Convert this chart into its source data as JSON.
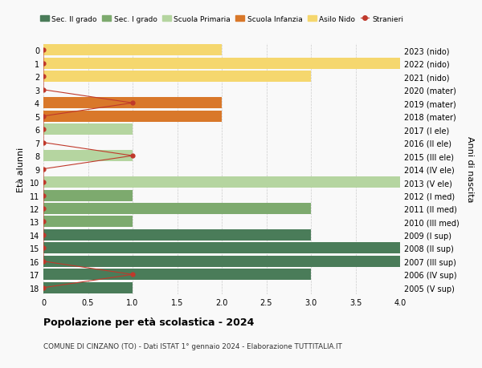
{
  "ages": [
    18,
    17,
    16,
    15,
    14,
    13,
    12,
    11,
    10,
    9,
    8,
    7,
    6,
    5,
    4,
    3,
    2,
    1,
    0
  ],
  "right_labels": [
    "2005 (V sup)",
    "2006 (IV sup)",
    "2007 (III sup)",
    "2008 (II sup)",
    "2009 (I sup)",
    "2010 (III med)",
    "2011 (II med)",
    "2012 (I med)",
    "2013 (V ele)",
    "2014 (IV ele)",
    "2015 (III ele)",
    "2016 (II ele)",
    "2017 (I ele)",
    "2018 (mater)",
    "2019 (mater)",
    "2020 (mater)",
    "2021 (nido)",
    "2022 (nido)",
    "2023 (nido)"
  ],
  "bar_values": [
    1,
    3,
    4,
    4,
    3,
    1,
    3,
    1,
    4,
    0,
    1,
    0,
    1,
    2,
    2,
    0,
    3,
    4,
    2
  ],
  "bar_colors": [
    "#4a7c59",
    "#4a7c59",
    "#4a7c59",
    "#4a7c59",
    "#4a7c59",
    "#7daa6e",
    "#7daa6e",
    "#7daa6e",
    "#b5d5a0",
    "#b5d5a0",
    "#b5d5a0",
    "#b5d5a0",
    "#b5d5a0",
    "#d9782a",
    "#d9782a",
    "#d9782a",
    "#f5d76e",
    "#f5d76e",
    "#f5d76e"
  ],
  "stranieri_values": [
    0,
    1,
    0,
    0,
    0,
    0,
    0,
    0,
    0,
    0,
    1,
    0,
    0,
    0,
    1,
    0,
    0,
    0,
    0
  ],
  "stranieri_color": "#c0392b",
  "legend_labels": [
    "Sec. II grado",
    "Sec. I grado",
    "Scuola Primaria",
    "Scuola Infanzia",
    "Asilo Nido",
    "Stranieri"
  ],
  "legend_colors": [
    "#4a7c59",
    "#7daa6e",
    "#b5d5a0",
    "#d9782a",
    "#f5d76e",
    "#c0392b"
  ],
  "title": "Popolazione per età scolastica - 2024",
  "subtitle": "COMUNE DI CINZANO (TO) - Dati ISTAT 1° gennaio 2024 - Elaborazione TUTTITALIA.IT",
  "ylabel_left": "Età alunni",
  "ylabel_right": "Anni di nascita",
  "xlim": [
    0,
    4.0
  ],
  "xticks": [
    0,
    0.5,
    1.0,
    1.5,
    2.0,
    2.5,
    3.0,
    3.5,
    4.0
  ],
  "xtick_labels": [
    "0",
    "0.5",
    "1.0",
    "1.5",
    "2.0",
    "2.5",
    "3.0",
    "3.5",
    "4.0"
  ],
  "background_color": "#f9f9f9",
  "grid_color": "#cccccc",
  "bar_height": 0.85
}
